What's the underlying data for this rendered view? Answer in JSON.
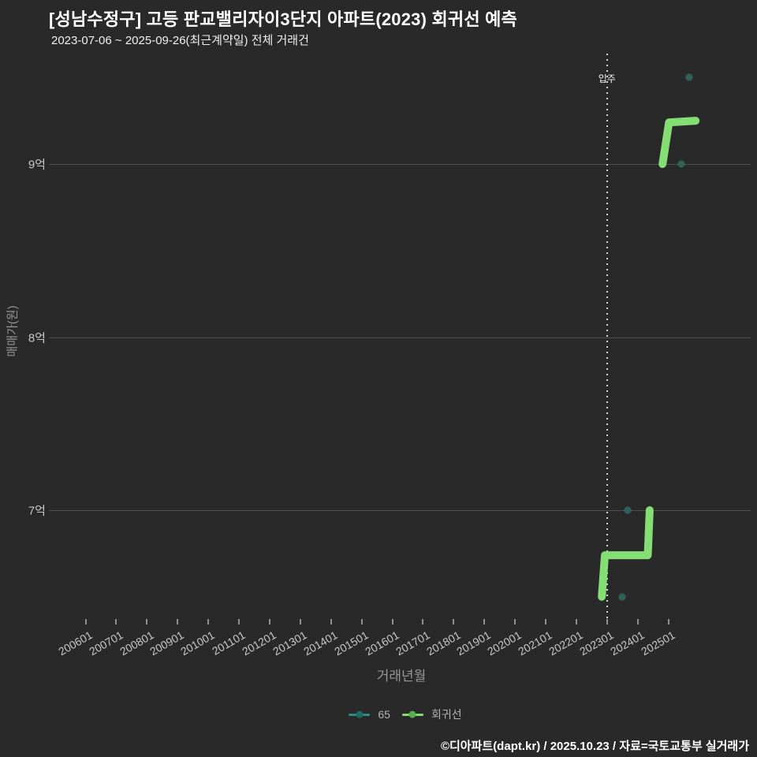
{
  "header": {
    "title": "[성남수정구] 고등 판교밸리자이3단지 아파트(2023) 회귀선 예측",
    "subtitle": "2023-07-06 ~ 2025-09-26(최근계약일) 전체 거래건"
  },
  "colors": {
    "background": "#292929",
    "gridline": "#4e4e4e",
    "scatter_dot": "#2d6359",
    "regression_line": "#85de74",
    "dotted_vline": "#d9d9d9",
    "tick_label": "#c8c8c8",
    "axis_title": "#979797",
    "title_text": "#ffffff"
  },
  "legend": {
    "items": [
      {
        "label": "65",
        "line_color": "#2e8f85",
        "dot_color": "#1d6b62"
      },
      {
        "label": "회귀선",
        "line_color": "#85de74",
        "dot_color": "#55b04b"
      }
    ]
  },
  "footer": {
    "attribution": "©디아파트(dapt.kr) / 2025.10.23 / 자료=국토교통부 실거래가"
  },
  "chart_data": {
    "type": "scatter",
    "title": "[성남수정구] 고등 판교밸리자이3단지 아파트(2023) 회귀선 예측",
    "subtitle": "2023-07-06 ~ 2025-09-26(최근계약일) 전체 거래건",
    "xlabel": "거래년월",
    "ylabel": "매매가(원)",
    "grid": "horizontal-only",
    "legend_position": "bottom-center",
    "x_tick_labels": [
      "200601",
      "200701",
      "200801",
      "200901",
      "201001",
      "201101",
      "201201",
      "201301",
      "201401",
      "201501",
      "201601",
      "201701",
      "201801",
      "201901",
      "202001",
      "202101",
      "202201",
      "202301",
      "202401",
      "202501"
    ],
    "y_ticks": [
      {
        "label": "7억",
        "value": 7
      },
      {
        "label": "8억",
        "value": 8
      },
      {
        "label": "9억",
        "value": 9
      }
    ],
    "x_range_years": [
      2004.8,
      2027.7
    ],
    "y_range_eok": [
      6.35,
      9.64
    ],
    "move_in": {
      "x": 2023.0,
      "label": "입주",
      "style": "dotted-vertical-line"
    },
    "series": [
      {
        "name": "65",
        "type": "scatter",
        "color": "#2d6359",
        "points": [
          {
            "x": 2023.5,
            "y": 6.5,
            "date": "202307",
            "price": "6.5억"
          },
          {
            "x": 2023.667,
            "y": 7.0,
            "date": "202309",
            "price": "7억"
          },
          {
            "x": 2025.417,
            "y": 9.0,
            "date": "202506",
            "price": "9억"
          },
          {
            "x": 2025.667,
            "y": 9.5,
            "date": "202509",
            "price": "9.5억"
          }
        ]
      },
      {
        "name": "회귀선",
        "type": "line",
        "color": "#85de74",
        "stroke_width": 10,
        "segments": [
          [
            [
              2022.83,
              6.5
            ],
            [
              2022.93,
              6.74
            ],
            [
              2024.33,
              6.74
            ],
            [
              2024.39,
              7.0
            ]
          ],
          [
            [
              2024.81,
              9.0
            ],
            [
              2025.02,
              9.24
            ],
            [
              2025.89,
              9.25
            ]
          ]
        ]
      }
    ]
  }
}
